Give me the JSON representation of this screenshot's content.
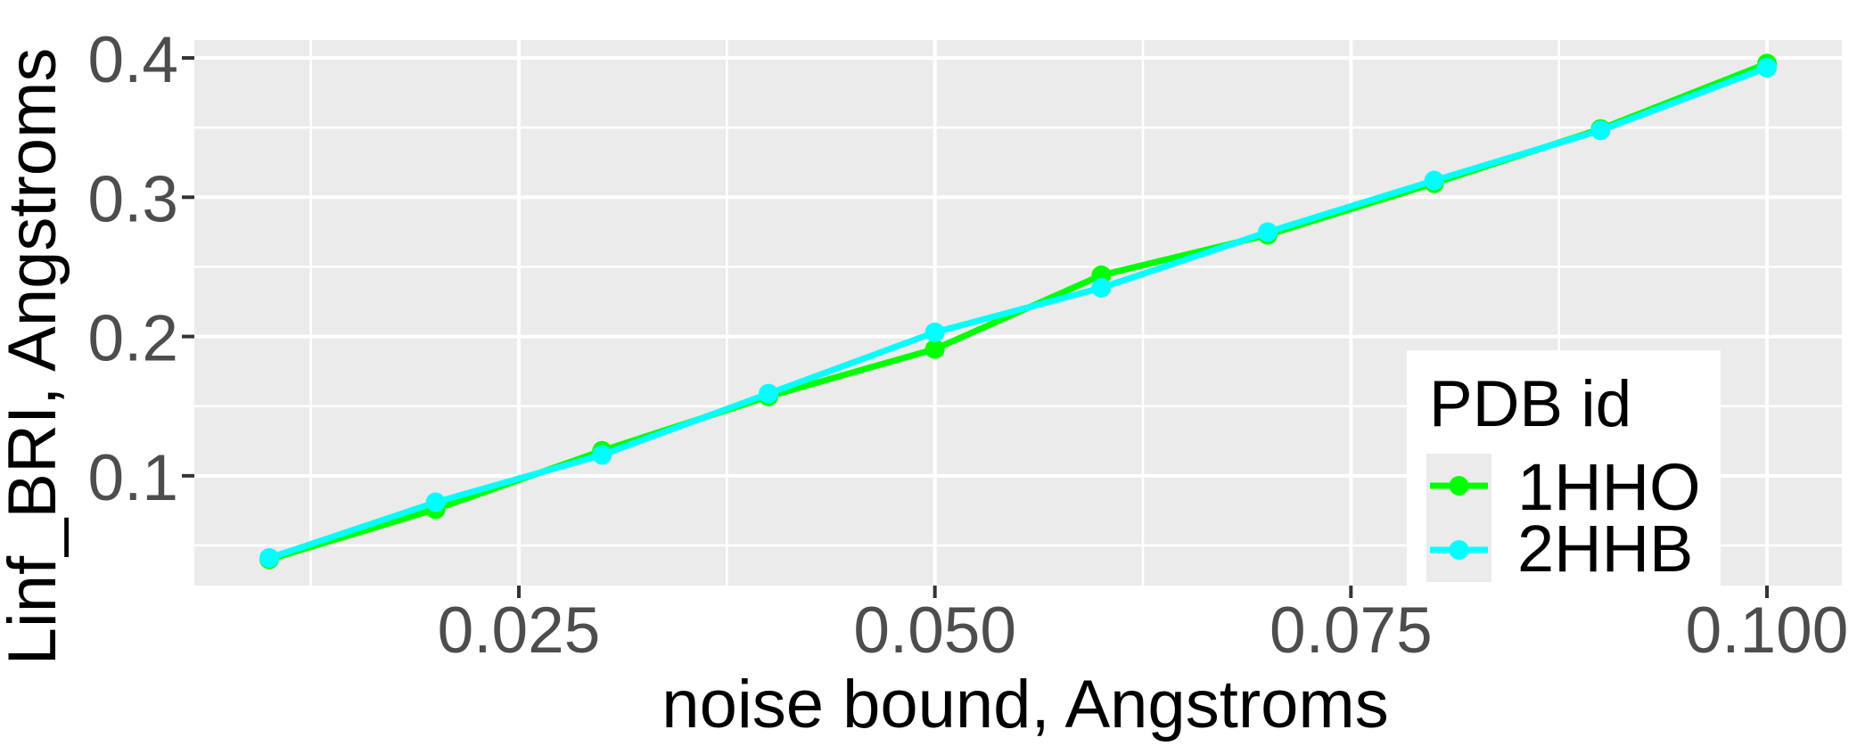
{
  "chart_data": {
    "type": "line",
    "title": "",
    "xlabel": "noise bound, Angstroms",
    "ylabel": "Linf_BRI, Angstroms",
    "x": [
      0.01,
      0.02,
      0.03,
      0.04,
      0.05,
      0.06,
      0.07,
      0.08,
      0.09,
      0.1
    ],
    "series": [
      {
        "name": "1HHO",
        "color": "#00FF00",
        "values": [
          0.04,
          0.076,
          0.118,
          0.157,
          0.191,
          0.244,
          0.273,
          0.31,
          0.349,
          0.396
        ]
      },
      {
        "name": "2HHB",
        "color": "#00FFFF",
        "values": [
          0.041,
          0.081,
          0.115,
          0.159,
          0.203,
          0.235,
          0.275,
          0.312,
          0.348,
          0.393
        ]
      }
    ],
    "legend": {
      "title": "PDB id",
      "position": "inside-right"
    },
    "xlim": [
      0.0055,
      0.1045
    ],
    "ylim": [
      0.0212,
      0.4128
    ],
    "x_ticks": {
      "major": [
        0.025,
        0.05,
        0.075,
        0.1
      ],
      "labels": [
        "0.025",
        "0.050",
        "0.075",
        "0.100"
      ],
      "minor": [
        0.0125,
        0.0375,
        0.0625,
        0.0875
      ]
    },
    "y_ticks": {
      "major": [
        0.1,
        0.2,
        0.3,
        0.4
      ],
      "labels": [
        "0.1",
        "0.2",
        "0.3",
        "0.4"
      ],
      "minor": [
        0.05,
        0.15,
        0.25,
        0.35
      ]
    },
    "grid": "on",
    "colors": {
      "panel_bg": "#EBEBEB",
      "grid": "#FFFFFF",
      "tick_label": "#4D4D4D",
      "tick_mark": "#333333",
      "axis_title": "#000000",
      "legend_bg": "#FFFFFF",
      "legend_key_bg": "#EBEBEB"
    }
  }
}
